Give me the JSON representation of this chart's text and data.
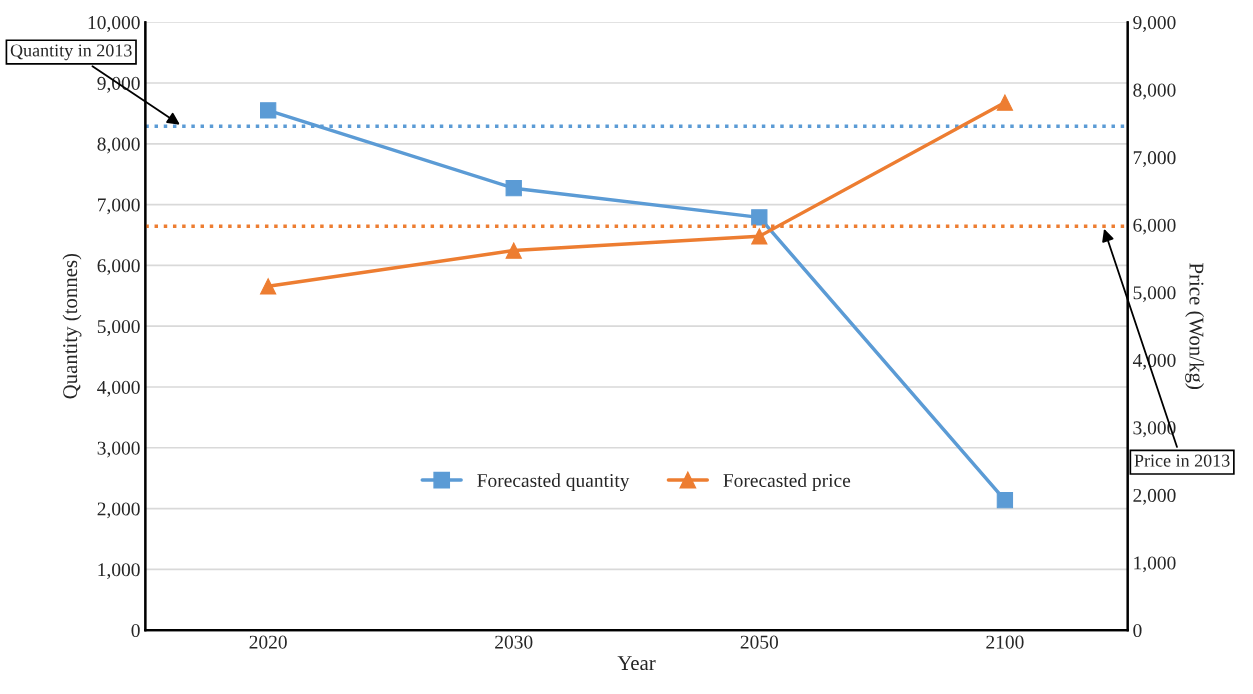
{
  "chart_data": {
    "type": "line",
    "xlabel": "Year",
    "ylabel": "Quantity (tonnes)",
    "y2label": "Price (Won/kg)",
    "categories": [
      "2020",
      "2030",
      "2050",
      "2100"
    ],
    "series": [
      {
        "name": "Forecasted quantity",
        "color": "#5b9bd5",
        "values": [
          8550,
          7270,
          6790,
          2140
        ],
        "marker": "square"
      },
      {
        "name": "Forecasted price",
        "color": "#ed7d31",
        "values": [
          5090,
          5620,
          5830,
          7810
        ],
        "marker": "triangle",
        "axis": "y2"
      }
    ],
    "ylim": [
      0,
      10000
    ],
    "yticks": [
      {
        "value": 0,
        "label": "0"
      },
      {
        "value": 1000,
        "label": "1,000"
      },
      {
        "value": 2000,
        "label": "2,000"
      },
      {
        "value": 3000,
        "label": "3,000"
      },
      {
        "value": 4000,
        "label": "4,000"
      },
      {
        "value": 5000,
        "label": "5,000"
      },
      {
        "value": 6000,
        "label": "6,000"
      },
      {
        "value": 7000,
        "label": "7,000"
      },
      {
        "value": 8000,
        "label": "8,000"
      },
      {
        "value": 9000,
        "label": "9,000"
      },
      {
        "value": 10000,
        "label": "10,000"
      }
    ],
    "y2lim": [
      0,
      9000
    ],
    "y2ticks": [
      {
        "value": 0,
        "label": "0"
      },
      {
        "value": 1000,
        "label": "1,000"
      },
      {
        "value": 2000,
        "label": "2,000"
      },
      {
        "value": 3000,
        "label": "3,000"
      },
      {
        "value": 4000,
        "label": "4,000"
      },
      {
        "value": 5000,
        "label": "5,000"
      },
      {
        "value": 6000,
        "label": "6,000"
      },
      {
        "value": 7000,
        "label": "7,000"
      },
      {
        "value": 8000,
        "label": "8,000"
      },
      {
        "value": 9000,
        "label": "9,000"
      }
    ],
    "ref_lines": [
      {
        "axis": "y",
        "value": 8290,
        "label": "Quantity in 2013",
        "color": "#5b9bd5",
        "line_style": "dotted"
      },
      {
        "axis": "y2",
        "value": 5980,
        "label": "Price in 2013",
        "color": "#ed7d31",
        "line_style": "dotted"
      }
    ],
    "grid": "y",
    "legend": "bottom",
    "line_style": "solid"
  }
}
